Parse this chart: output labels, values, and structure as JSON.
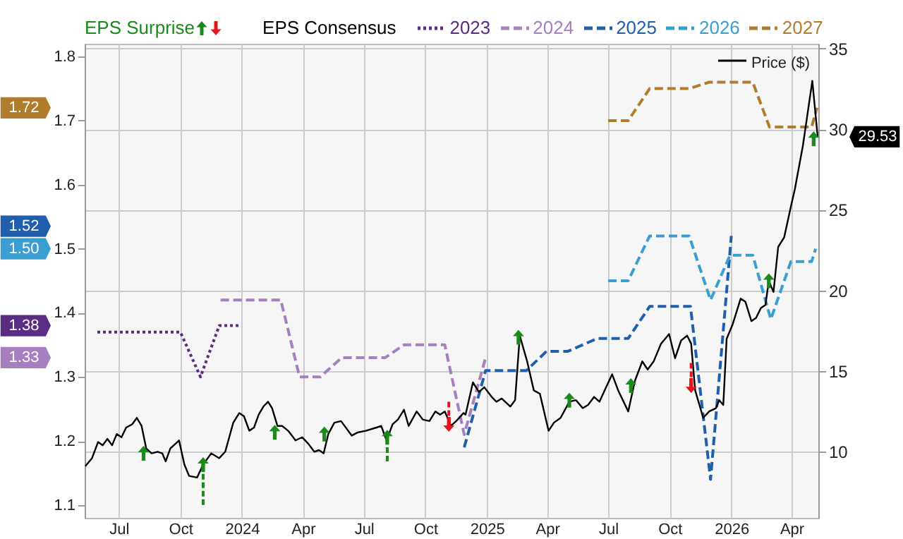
{
  "chart_data": {
    "type": "line",
    "legend": "top",
    "legend_title": "EPS Consensus",
    "grid": true,
    "xlim": [
      "2023-05-11",
      "2026-05-11"
    ],
    "xticks": [
      {
        "value": "2023-07-01",
        "label": "Jul"
      },
      {
        "value": "2023-10-01",
        "label": "Oct"
      },
      {
        "value": "2024-01-01",
        "label": "2024"
      },
      {
        "value": "2024-04-01",
        "label": "Apr"
      },
      {
        "value": "2024-07-01",
        "label": "Jul"
      },
      {
        "value": "2024-10-01",
        "label": "Oct"
      },
      {
        "value": "2025-01-01",
        "label": "2025"
      },
      {
        "value": "2025-04-01",
        "label": "Apr"
      },
      {
        "value": "2025-07-01",
        "label": "Jul"
      },
      {
        "value": "2025-10-01",
        "label": "Oct"
      },
      {
        "value": "2026-01-01",
        "label": "2026"
      },
      {
        "value": "2026-04-01",
        "label": "Apr"
      }
    ],
    "ylim": [
      1.08,
      1.82
    ],
    "yticks": [
      1.1,
      1.2,
      1.3,
      1.4,
      1.5,
      1.6,
      1.7,
      1.8
    ],
    "y2lim": [
      5.9,
      35.3
    ],
    "y2ticks": [
      10,
      15,
      20,
      25,
      30,
      35
    ],
    "annotations": [
      "1.72",
      "1.52",
      "1.50",
      "1.38",
      "1.33",
      "29.53"
    ],
    "series": [
      {
        "name": "2023",
        "type": "line",
        "color": "#5b2c83",
        "line_style": "dotted",
        "x": [
          "2023-05-30",
          "2023-10-01",
          "2023-10-31",
          "2023-11-28",
          "2023-12-29"
        ],
        "values": [
          1.37,
          1.37,
          1.3,
          1.38,
          1.38
        ]
      },
      {
        "name": "2024",
        "type": "line",
        "color": "#a57fc0",
        "line_style": "dashed",
        "x": [
          "2023-11-30",
          "2024-02-28",
          "2024-03-27",
          "2024-04-27",
          "2024-05-29",
          "2024-08-02",
          "2024-08-30",
          "2024-10-30",
          "2024-11-28",
          "2024-12-30"
        ],
        "values": [
          1.42,
          1.42,
          1.3,
          1.3,
          1.33,
          1.33,
          1.35,
          1.35,
          1.21,
          1.33
        ]
      },
      {
        "name": "2025",
        "type": "line",
        "color": "#1f5fad",
        "line_style": "dashed",
        "x": [
          "2024-11-28",
          "2024-12-30",
          "2025-03-01",
          "2025-03-31",
          "2025-05-02",
          "2025-06-15",
          "2025-07-31",
          "2025-09-01",
          "2025-11-01",
          "2025-12-01",
          "2026-01-01"
        ],
        "values": [
          1.19,
          1.31,
          1.31,
          1.34,
          1.34,
          1.36,
          1.36,
          1.41,
          1.41,
          1.14,
          1.52
        ]
      },
      {
        "name": "2026",
        "type": "line",
        "color": "#3a9fd0",
        "line_style": "dashed",
        "x": [
          "2025-07-01",
          "2025-07-31",
          "2025-09-01",
          "2025-10-30",
          "2025-12-01",
          "2025-12-30",
          "2026-02-02",
          "2026-03-01",
          "2026-03-31",
          "2026-05-01",
          "2026-05-07"
        ],
        "values": [
          1.45,
          1.45,
          1.52,
          1.52,
          1.42,
          1.49,
          1.49,
          1.39,
          1.48,
          1.48,
          1.5
        ]
      },
      {
        "name": "2027",
        "type": "line",
        "color": "#b07d2e",
        "line_style": "dashed",
        "x": [
          "2025-07-01",
          "2025-07-31",
          "2025-09-01",
          "2025-10-30",
          "2025-11-29",
          "2026-02-02",
          "2026-02-27",
          "2026-05-01",
          "2026-05-09"
        ],
        "values": [
          1.7,
          1.7,
          1.75,
          1.75,
          1.76,
          1.76,
          1.69,
          1.69,
          1.72
        ]
      },
      {
        "name": "Price ($)",
        "type": "line",
        "color": "#000000",
        "axis": "y2",
        "x": [
          "2023-05-12",
          "2023-05-22",
          "2023-05-31",
          "2023-06-07",
          "2023-06-14",
          "2023-06-21",
          "2023-06-28",
          "2023-07-05",
          "2023-07-12",
          "2023-07-21",
          "2023-07-28",
          "2023-08-04",
          "2023-08-11",
          "2023-08-19",
          "2023-08-28",
          "2023-09-04",
          "2023-09-09",
          "2023-09-16",
          "2023-09-29",
          "2023-10-07",
          "2023-10-14",
          "2023-10-26",
          "2023-11-04",
          "2023-11-16",
          "2023-11-28",
          "2023-12-07",
          "2023-12-19",
          "2023-12-28",
          "2024-01-04",
          "2024-01-12",
          "2024-01-19",
          "2024-01-26",
          "2024-02-02",
          "2024-02-09",
          "2024-02-15",
          "2024-02-23",
          "2024-03-01",
          "2024-03-10",
          "2024-03-21",
          "2024-03-31",
          "2024-04-09",
          "2024-04-18",
          "2024-04-25",
          "2024-05-02",
          "2024-05-09",
          "2024-05-18",
          "2024-05-28",
          "2024-06-13",
          "2024-06-22",
          "2024-07-04",
          "2024-07-20",
          "2024-07-27",
          "2024-08-04",
          "2024-08-13",
          "2024-08-21",
          "2024-08-30",
          "2024-09-06",
          "2024-09-18",
          "2024-09-27",
          "2024-10-07",
          "2024-10-16",
          "2024-10-23",
          "2024-10-30",
          "2024-11-08",
          "2024-11-16",
          "2024-11-27",
          "2024-11-30",
          "2024-12-11",
          "2024-12-20",
          "2024-12-28",
          "2025-01-08",
          "2025-01-15",
          "2025-01-23",
          "2025-02-05",
          "2025-02-12",
          "2025-02-19",
          "2025-03-02",
          "2025-03-12",
          "2025-03-21",
          "2025-04-03",
          "2025-04-11",
          "2025-04-21",
          "2025-05-04",
          "2025-05-14",
          "2025-05-24",
          "2025-06-01",
          "2025-06-10",
          "2025-06-18",
          "2025-06-28",
          "2025-07-07",
          "2025-07-16",
          "2025-07-31",
          "2025-08-10",
          "2025-08-21",
          "2025-08-29",
          "2025-09-07",
          "2025-09-18",
          "2025-09-30",
          "2025-10-09",
          "2025-10-18",
          "2025-10-27",
          "2025-11-02",
          "2025-11-08",
          "2025-11-20",
          "2025-11-29",
          "2025-12-09",
          "2025-12-14",
          "2025-12-20",
          "2025-12-25",
          "2026-01-03",
          "2026-01-15",
          "2026-01-22",
          "2026-01-31",
          "2026-02-07",
          "2026-02-14",
          "2026-02-21",
          "2026-02-26",
          "2026-03-05",
          "2026-03-12",
          "2026-03-21",
          "2026-03-31",
          "2026-04-06",
          "2026-04-18",
          "2026-05-02",
          "2026-05-10"
        ],
        "values": [
          9.1,
          9.6,
          10.6,
          10.4,
          10.8,
          10.4,
          11.1,
          10.9,
          11.5,
          11.7,
          12.1,
          11.6,
          10.2,
          9.9,
          10.0,
          9.9,
          9.4,
          10.2,
          10.7,
          9.2,
          8.5,
          8.4,
          9.2,
          9.9,
          9.6,
          10.0,
          11.8,
          12.4,
          12.2,
          11.3,
          11.5,
          12.3,
          12.8,
          13.1,
          12.7,
          11.6,
          11.6,
          11.3,
          10.7,
          10.9,
          10.5,
          10.0,
          10.1,
          9.9,
          11.1,
          11.8,
          11.9,
          11.0,
          11.2,
          11.3,
          11.5,
          11.6,
          10.7,
          11.7,
          12.0,
          12.6,
          11.6,
          12.5,
          12.0,
          11.9,
          12.5,
          12.3,
          12.5,
          11.6,
          11.9,
          12.4,
          12.3,
          14.3,
          13.7,
          14.0,
          13.4,
          13.1,
          13.3,
          12.8,
          13.2,
          17.2,
          15.6,
          13.8,
          13.6,
          11.3,
          11.8,
          12.1,
          13.1,
          13.2,
          12.7,
          12.9,
          13.4,
          13.1,
          14.0,
          14.8,
          13.8,
          12.5,
          14.4,
          15.6,
          15.1,
          15.6,
          16.7,
          17.3,
          15.8,
          16.9,
          17.2,
          16.7,
          13.8,
          12.1,
          12.5,
          12.7,
          13.2,
          12.9,
          17.0,
          17.9,
          19.5,
          19.3,
          18.1,
          18.3,
          18.9,
          19.1,
          20.6,
          19.9,
          22.7,
          23.3,
          25.2,
          26.3,
          29.0,
          33.0,
          29.53
        ]
      },
      {
        "name": "EPS Surprise",
        "type": "scatter",
        "color": "#1a8a1a",
        "axis": "y2",
        "x": [
          "2023-08-07",
          "2023-11-04",
          "2024-02-19",
          "2024-05-03",
          "2024-08-05",
          "2025-02-17",
          "2025-05-04",
          "2025-08-04",
          "2026-02-26",
          "2026-05-04"
        ],
        "values": [
          9.9,
          9.2,
          11.2,
          11.1,
          10.9,
          17.1,
          13.2,
          14.1,
          20.6,
          29.4
        ],
        "errors": [
          null,
          [
            6.7,
            9.2
          ],
          null,
          null,
          [
            9.4,
            10.9
          ],
          null,
          null,
          null,
          null,
          null
        ]
      },
      {
        "type": "scatter",
        "color": "#e8141b",
        "axis": "y2",
        "x": [
          "2024-11-05",
          "2025-11-02"
        ],
        "values": [
          11.7,
          14.1
        ],
        "errors": [
          [
            11.7,
            13.2
          ],
          [
            14.1,
            15.6
          ]
        ]
      }
    ]
  }
}
